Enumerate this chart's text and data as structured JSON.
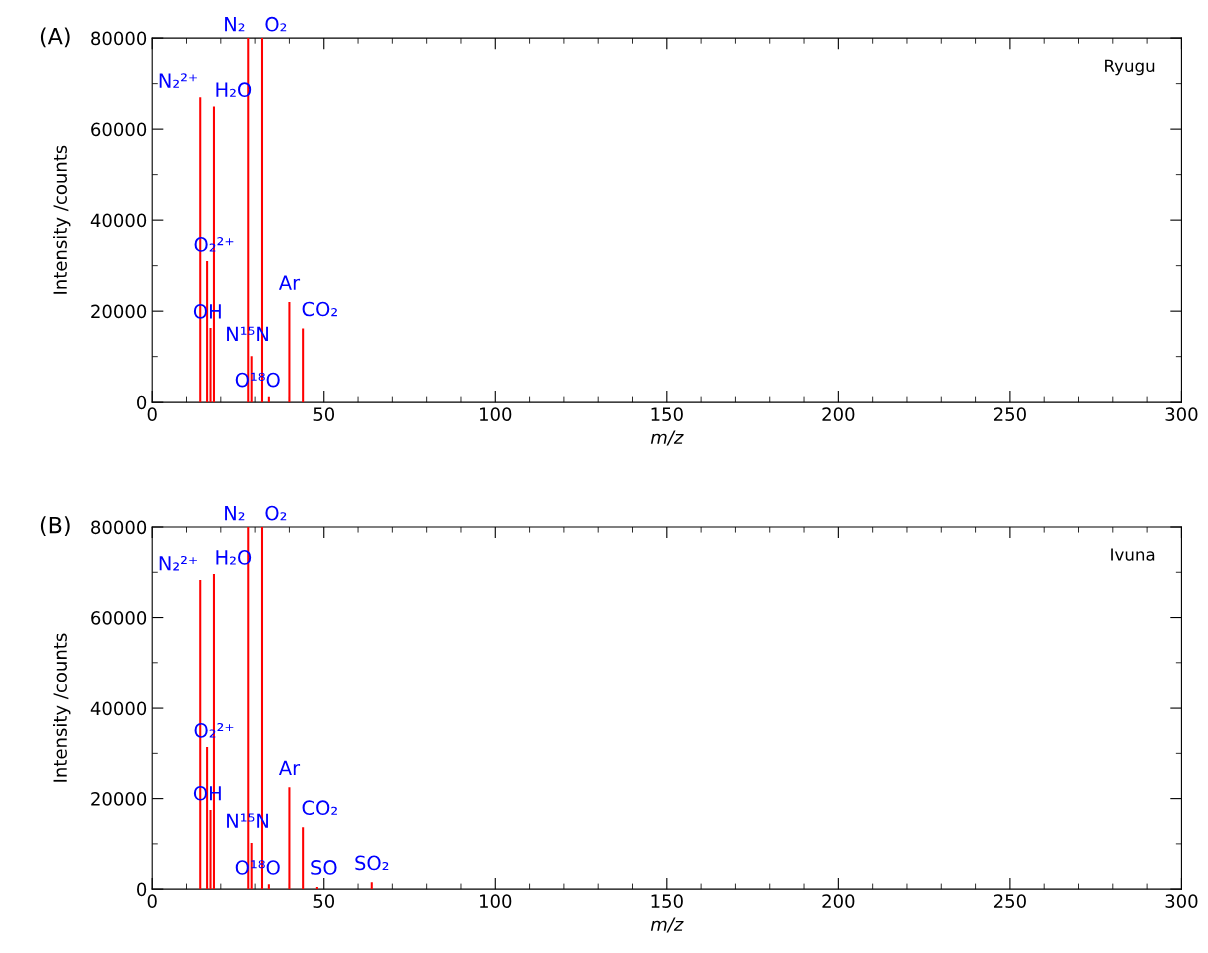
{
  "chart_data": [
    {
      "type": "bar",
      "title": "(A)",
      "xlabel": "m/z",
      "ylabel": "Intensity /counts",
      "xlim": [
        0,
        300
      ],
      "xticks": [
        0,
        50,
        100,
        150,
        200,
        250,
        300
      ],
      "ylim": [
        0,
        80000
      ],
      "yticks": [
        0,
        20000,
        40000,
        60000,
        80000
      ],
      "grid": false,
      "legend": false,
      "x": [
        14,
        16,
        17,
        18,
        28,
        29,
        32,
        34,
        40,
        44
      ],
      "series": [
        {
          "color": "#ff0000",
          "values": [
            67000,
            31000,
            16300,
            65000,
            80000,
            10100,
            80000,
            1200,
            22000,
            16200
          ]
        }
      ],
      "annotations": [
        "Ryugu",
        {
          "text": "N₂²⁺",
          "x": 14,
          "y": 67000
        },
        {
          "text": "H₂O",
          "x": 18,
          "y": 65000
        },
        {
          "text": "N₂",
          "x": 28,
          "y": 80000
        },
        {
          "text": "O₂",
          "x": 32,
          "y": 80000
        },
        {
          "text": "O₂²⁺",
          "x": 16,
          "y": 31000
        },
        {
          "text": "OH",
          "x": 17,
          "y": 16300
        },
        {
          "text": "N¹⁵N",
          "x": 29,
          "y": 10100
        },
        {
          "text": "O¹⁸O",
          "x": 34,
          "y": 1200
        },
        {
          "text": "Ar",
          "x": 40,
          "y": 22000
        },
        {
          "text": "CO₂",
          "x": 44,
          "y": 16200
        }
      ]
    },
    {
      "type": "bar",
      "title": "(B)",
      "xlabel": "m/z",
      "ylabel": "Intensity /counts",
      "xlim": [
        0,
        300
      ],
      "xticks": [
        0,
        50,
        100,
        150,
        200,
        250,
        300
      ],
      "ylim": [
        0,
        80000
      ],
      "yticks": [
        0,
        20000,
        40000,
        60000,
        80000
      ],
      "grid": false,
      "legend": false,
      "x": [
        14,
        16,
        17,
        18,
        28,
        29,
        32,
        34,
        40,
        44,
        48,
        64
      ],
      "series": [
        {
          "color": "#ff0000",
          "values": [
            68300,
            31400,
            17500,
            69600,
            80000,
            10200,
            80000,
            1100,
            22500,
            13700,
            500,
            1500
          ]
        }
      ],
      "annotations": [
        "Ivuna",
        {
          "text": "N₂²⁺",
          "x": 14,
          "y": 68300
        },
        {
          "text": "H₂O",
          "x": 18,
          "y": 69600
        },
        {
          "text": "N₂",
          "x": 28,
          "y": 80000
        },
        {
          "text": "O₂",
          "x": 32,
          "y": 80000
        },
        {
          "text": "O₂²⁺",
          "x": 16,
          "y": 31400
        },
        {
          "text": "OH",
          "x": 17,
          "y": 17500
        },
        {
          "text": "N¹⁵N",
          "x": 29,
          "y": 10200
        },
        {
          "text": "O¹⁸O",
          "x": 34,
          "y": 1100
        },
        {
          "text": "Ar",
          "x": 40,
          "y": 22500
        },
        {
          "text": "CO₂",
          "x": 44,
          "y": 13700
        },
        {
          "text": "SO",
          "x": 48,
          "y": 500
        },
        {
          "text": "SO₂",
          "x": 64,
          "y": 1500
        }
      ]
    }
  ]
}
